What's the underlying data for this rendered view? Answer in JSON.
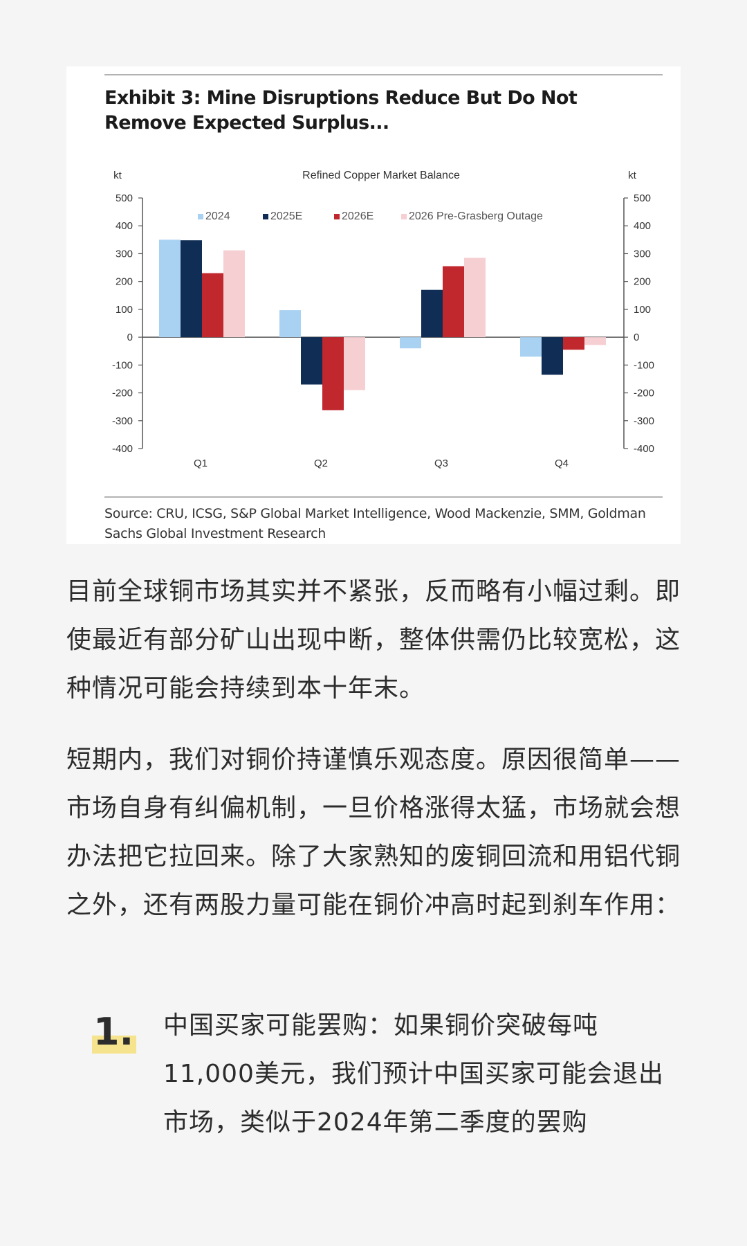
{
  "figure": {
    "title": "Exhibit 3: Mine Disruptions Reduce But Do Not Remove Expected Surplus...",
    "source": "Source: CRU, ICSG, S&P Global Market Intelligence, Wood Mackenzie, SMM, Goldman Sachs Global Investment Research"
  },
  "chart_data": {
    "type": "bar",
    "title": "Refined Copper Market Balance",
    "ylabel_left": "kt",
    "ylabel_right": "kt",
    "ylim": [
      -400,
      500
    ],
    "yticks": [
      500,
      400,
      300,
      200,
      100,
      0,
      -100,
      -200,
      -300,
      -400
    ],
    "categories": [
      "Q1",
      "Q2",
      "Q3",
      "Q4"
    ],
    "legend_position": "top",
    "grid": false,
    "series": [
      {
        "name": "2024",
        "color": "#a9d2f2",
        "values": [
          350,
          97,
          -40,
          -70
        ]
      },
      {
        "name": "2025E",
        "color": "#0f2d55",
        "values": [
          348,
          -170,
          170,
          -135
        ]
      },
      {
        "name": "2026E",
        "color": "#c0282e",
        "values": [
          230,
          -262,
          255,
          -45
        ]
      },
      {
        "name": "2026 Pre-Grasberg Outage",
        "color": "#f6cfd2",
        "values": [
          312,
          -190,
          285,
          -28
        ]
      }
    ]
  },
  "article": {
    "paragraph1": "目前全球铜市场其实并不紧张，反而略有小幅过剩。即使最近有部分矿山出现中断，整体供需仍比较宽松，这种情况可能会持续到本十年末。",
    "paragraph2": "短期内，我们对铜价持谨慎乐观态度。原因很简单——市场自身有纠偏机制，一旦价格涨得太猛，市场就会想办法把它拉回来。除了大家熟知的废铜回流和用铝代铜之外，还有两股力量可能在铜价冲高时起到刹车作用：",
    "list": [
      {
        "number": "1.",
        "text": "中国买家可能罢购：如果铜价突破每吨11,000美元，我们预计中国买家可能会退出市场，类似于2024年第二季度的罢购"
      }
    ]
  }
}
